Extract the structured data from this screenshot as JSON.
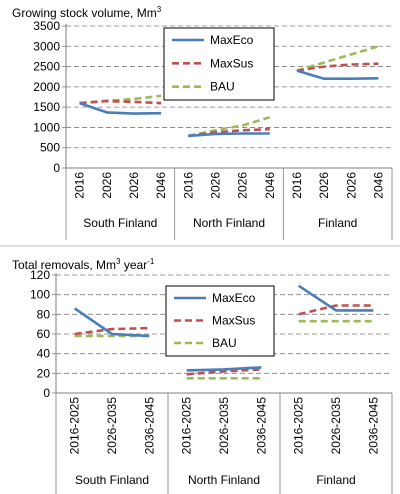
{
  "chart_data": [
    {
      "type": "line",
      "title": "Growing stock volume, Mm",
      "title_sup": "3",
      "yticks": [
        0,
        500,
        1000,
        1500,
        2000,
        2500,
        3000,
        3500
      ],
      "ylim": [
        0,
        3500
      ],
      "grid": true,
      "legend_position": "top-center",
      "groups": [
        {
          "name": "South Finland",
          "x": [
            "2016",
            "2026",
            "2026",
            "2046"
          ]
        },
        {
          "name": "North Finland",
          "x": [
            "2016",
            "2026",
            "2026",
            "2046"
          ]
        },
        {
          "name": "Finland",
          "x": [
            "2016",
            "2026",
            "2026",
            "2046"
          ]
        }
      ],
      "series": [
        {
          "name": "MaxEco",
          "color": "#4a7ebb",
          "style": "solid",
          "values": [
            [
              1600,
              1370,
              1340,
              1350
            ],
            [
              790,
              840,
              850,
              850
            ],
            [
              2400,
              2200,
              2200,
              2210
            ]
          ]
        },
        {
          "name": "MaxSus",
          "color": "#c0504d",
          "style": "dash",
          "values": [
            [
              1600,
              1650,
              1630,
              1600
            ],
            [
              790,
              880,
              930,
              960
            ],
            [
              2400,
              2500,
              2550,
              2570
            ]
          ]
        },
        {
          "name": "BAU",
          "color": "#9bbb59",
          "style": "dash",
          "values": [
            [
              1600,
              1660,
              1700,
              1780
            ],
            [
              790,
              930,
              1050,
              1250
            ],
            [
              2400,
              2600,
              2800,
              3000
            ]
          ]
        }
      ]
    },
    {
      "type": "line",
      "title": "Total removals, Mm",
      "title_sup": "3",
      "title_suffix": " year",
      "title_sup2": "-1",
      "yticks": [
        0,
        20,
        40,
        60,
        80,
        100,
        120
      ],
      "ylim": [
        0,
        120
      ],
      "grid": true,
      "legend_position": "top-center",
      "groups": [
        {
          "name": "South Finland",
          "x": [
            "2016-2025",
            "2026-2035",
            "2036-2045"
          ]
        },
        {
          "name": "North Finland",
          "x": [
            "2016-2025",
            "2026-2035",
            "2036-2045"
          ]
        },
        {
          "name": "Finland",
          "x": [
            "2016-2025",
            "2026-2035",
            "2036-2045"
          ]
        }
      ],
      "series": [
        {
          "name": "MaxEco",
          "color": "#4a7ebb",
          "style": "solid",
          "values": [
            [
              86,
              60,
              58
            ],
            [
              23,
              24,
              26
            ],
            [
              109,
              84,
              84
            ]
          ]
        },
        {
          "name": "MaxSus",
          "color": "#c0504d",
          "style": "dash",
          "values": [
            [
              60,
              65,
              66
            ],
            [
              19,
              22,
              24
            ],
            [
              80,
              89,
              89
            ]
          ]
        },
        {
          "name": "BAU",
          "color": "#9bbb59",
          "style": "dash",
          "values": [
            [
              58,
              58,
              58
            ],
            [
              15,
              15,
              15
            ],
            [
              73,
              73,
              73
            ]
          ]
        }
      ]
    }
  ]
}
